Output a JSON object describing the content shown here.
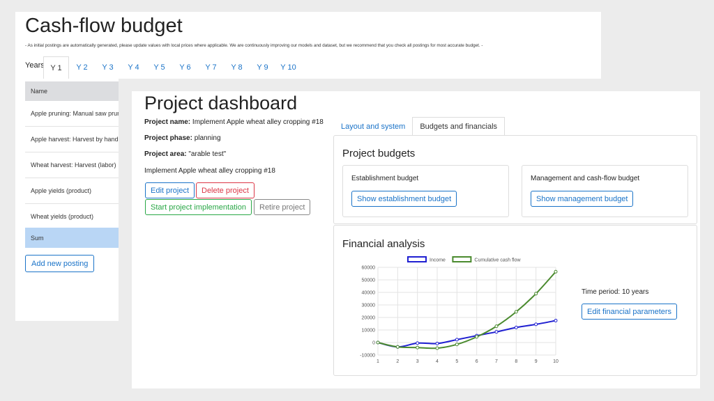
{
  "cashflow": {
    "title": "Cash-flow budget",
    "note": "- As initial postings are automatically generated, please update values with local prices where applicable. We are continuously improving our models and dataset, but we recommend that you check all postings for most accurate budget. -",
    "years_label": "Years:",
    "years": [
      "Y 1",
      "Y 2",
      "Y 3",
      "Y 4",
      "Y 5",
      "Y 6",
      "Y 7",
      "Y 8",
      "Y 9",
      "Y 10"
    ],
    "active_year": "Y 1",
    "table_header": "Name",
    "rows": [
      "Apple pruning: Manual saw pruning",
      "Apple harvest: Harvest by hand (labor)",
      "Wheat harvest: Harvest (labor)",
      "Apple yields (product)",
      "Wheat yields (product)"
    ],
    "sum_label": "Sum",
    "add_button": "Add new posting"
  },
  "dashboard": {
    "title": "Project dashboard",
    "project_name_label": "Project name:",
    "project_name": "Implement Apple wheat alley cropping #18",
    "project_phase_label": "Project phase:",
    "project_phase": "planning",
    "project_area_label": "Project area:",
    "project_area": "\"arable test\"",
    "description": "Implement Apple wheat alley cropping #18",
    "buttons": {
      "edit": "Edit project",
      "delete": "Delete project",
      "start": "Start project implementation",
      "retire": "Retire project"
    },
    "tabs": [
      "Layout and system",
      "Budgets and financials"
    ],
    "active_tab": "Budgets and financials",
    "budgets": {
      "title": "Project budgets",
      "establishment_label": "Establishment budget",
      "establishment_button": "Show establishment budget",
      "management_label": "Management and cash-flow budget",
      "management_button": "Show management budget"
    },
    "financial": {
      "title": "Financial analysis",
      "time_period": "Time period: 10 years",
      "edit_button": "Edit financial parameters"
    }
  },
  "chart_data": {
    "type": "line",
    "x": [
      1,
      2,
      3,
      4,
      5,
      6,
      7,
      8,
      9,
      10
    ],
    "series": [
      {
        "name": "Income",
        "color": "#1f1fd1",
        "values": [
          0,
          -3500,
          -500,
          -800,
          2300,
          5500,
          8500,
          12000,
          14500,
          17500
        ]
      },
      {
        "name": "Cumulative cash flow",
        "color": "#4a8a2e",
        "values": [
          0,
          -3500,
          -4000,
          -4500,
          -1500,
          4500,
          13000,
          24500,
          39000,
          56500
        ]
      }
    ],
    "ylim": [
      -10000,
      60000
    ],
    "yticks": [
      -10000,
      0,
      10000,
      20000,
      30000,
      40000,
      50000,
      60000
    ],
    "xlim": [
      1,
      10
    ],
    "grid": true,
    "legend": "top-center"
  }
}
